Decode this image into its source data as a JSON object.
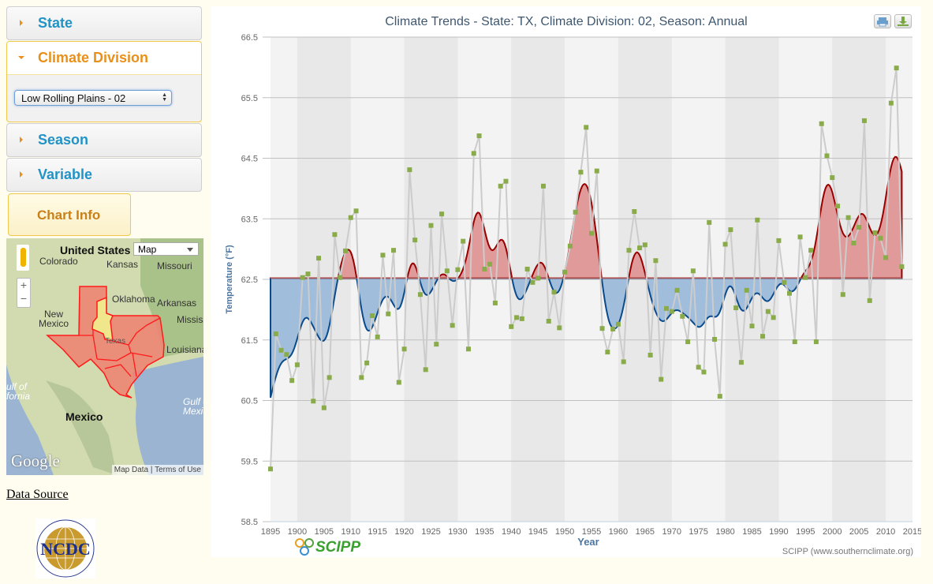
{
  "sidebar": {
    "state_label": "State",
    "division_label": "Climate Division",
    "division_selected": "Low Rolling Plains - 02",
    "season_label": "Season",
    "variable_label": "Variable",
    "chart_info_label": "Chart Info",
    "data_source_link": "Data Source",
    "ncdc_logo_text": "NCDC"
  },
  "map": {
    "type_selected": "Map",
    "labels": {
      "us": "United States",
      "colorado": "Colorado",
      "kansas": "Kansas",
      "missouri": "Missouri",
      "oklahoma": "Oklahoma",
      "arkansas": "Arkansas",
      "new_mexico": "New\nMexico",
      "mississippi": "Mississi",
      "texas": "Texas",
      "louisiana": "Louisiana",
      "gulf_california": "ulf of\nfornia",
      "gulf_mexico": "Gulf o\nMexic",
      "mexico": "Mexico"
    },
    "google_logo": "Google",
    "map_data": "Map Data",
    "terms": "Terms of Use",
    "zoom_in": "+",
    "zoom_out": "−",
    "highlight_color": "#f0e68c",
    "division_color": "#f08070"
  },
  "chart_data": {
    "type": "line",
    "title": "Climate Trends - State: TX, Climate Division: 02, Season: Annual",
    "xlabel": "Year",
    "ylabel": "Temperature (°F)",
    "credit": "SCIPP (www.southernclimate.org)",
    "logo_text": "SCIPP",
    "xlim": [
      1895,
      2015
    ],
    "ylim": [
      58.5,
      66.5
    ],
    "x_ticks": [
      1895,
      1900,
      1905,
      1910,
      1915,
      1920,
      1925,
      1930,
      1935,
      1940,
      1945,
      1950,
      1955,
      1960,
      1965,
      1970,
      1975,
      1980,
      1985,
      1990,
      1995,
      2000,
      2005,
      2010,
      2015
    ],
    "y_ticks": [
      "58.5",
      "59.5",
      "60.5",
      "61.5",
      "62.5",
      "63.5",
      "64.5",
      "65.5",
      "66.5"
    ],
    "grid": true,
    "baseline_mean": 62.52,
    "colors": {
      "points": "#8aab4a",
      "line": "#cccccc",
      "above": "#e09a9a",
      "above_line": "#990000",
      "below": "#a0bedc",
      "below_line": "#0a4a8a"
    },
    "start_year": 1895,
    "values": [
      59.37,
      61.6,
      61.33,
      61.26,
      60.83,
      61.09,
      62.53,
      62.59,
      60.49,
      62.85,
      60.38,
      60.88,
      63.24,
      62.53,
      62.97,
      63.52,
      63.63,
      60.88,
      61.12,
      61.9,
      61.55,
      62.9,
      61.93,
      62.98,
      60.8,
      61.35,
      64.31,
      63.15,
      62.25,
      61.01,
      63.39,
      61.43,
      63.58,
      62.64,
      61.74,
      62.66,
      63.13,
      61.35,
      64.58,
      64.87,
      62.67,
      62.75,
      62.11,
      64.04,
      64.12,
      61.72,
      61.87,
      61.85,
      62.67,
      62.45,
      62.52,
      64.04,
      61.81,
      62.29,
      61.7,
      62.62,
      63.05,
      63.61,
      64.27,
      65.01,
      63.26,
      64.29,
      61.69,
      61.3,
      61.68,
      61.76,
      61.14,
      62.98,
      63.62,
      63.02,
      63.07,
      61.25,
      62.81,
      60.85,
      62.02,
      61.97,
      62.32,
      61.89,
      61.47,
      62.64,
      61.05,
      60.97,
      63.44,
      61.51,
      60.57,
      63.08,
      63.32,
      62.03,
      61.13,
      62.32,
      61.73,
      63.48,
      61.56,
      61.97,
      61.87,
      63.14,
      62.45,
      62.27,
      61.47,
      63.2,
      62.53,
      62.98,
      61.47,
      65.07,
      64.54,
      64.18,
      63.71,
      62.25,
      63.52,
      63.1,
      63.36,
      65.12,
      62.15,
      63.27,
      63.18,
      62.86,
      65.41,
      65.99,
      62.71
    ]
  }
}
